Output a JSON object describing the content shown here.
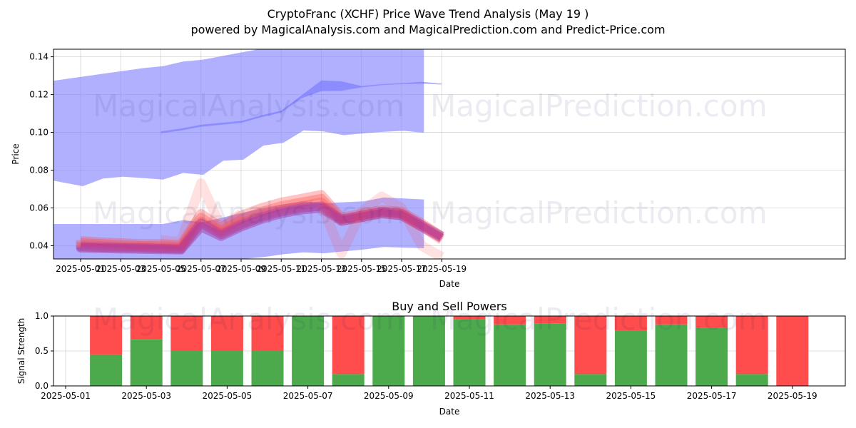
{
  "title": "CryptoFranc (XCHF) Price Wave Trend Analysis (May 19 )",
  "subtitle": "powered by MagicalAnalysis.com and MagicalPrediction.com and Predict-Price.com",
  "watermarks": [
    "MagicalAnalysis.com",
    "MagicalPrediction.com"
  ],
  "colors": {
    "band": "#8080ff",
    "band_dark": "#7070ff",
    "wave": "#ff4444",
    "wave_purple": "#aa3399",
    "buy": "#4caa4c",
    "sell": "#ff4c4c"
  },
  "chart_data": [
    {
      "type": "area",
      "title": "",
      "xlabel": "Date",
      "ylabel": "Price",
      "x_ticks": [
        "2025-05-01",
        "2025-05-03",
        "2025-05-05",
        "2025-05-07",
        "2025-05-09",
        "2025-05-11",
        "2025-05-13",
        "2025-05-15",
        "2025-05-17",
        "2025-05-19"
      ],
      "y_ticks": [
        0.04,
        0.06,
        0.08,
        0.1,
        0.12,
        0.14
      ],
      "xlim": [
        "2025-04-30",
        "2025-05-19"
      ],
      "ylim": [
        0.033,
        0.144
      ],
      "grid": true,
      "series": [
        {
          "dates": [
            "2025-04-30",
            "2025-05-01",
            "2025-05-02",
            "2025-05-03",
            "2025-05-04",
            "2025-05-05",
            "2025-05-06",
            "2025-05-07",
            "2025-05-08",
            "2025-05-09",
            "2025-05-10",
            "2025-05-11",
            "2025-05-12",
            "2025-05-13",
            "2025-05-14",
            "2025-05-15",
            "2025-05-16",
            "2025-05-17",
            "2025-05-18",
            "2025-05-19"
          ],
          "upper": [
            0.1265,
            0.128,
            0.1295,
            0.131,
            0.1325,
            0.134,
            0.135,
            0.1375,
            0.1385,
            0.1405,
            0.1425,
            0.1445,
            0.1465,
            0.148,
            0.149,
            0.149,
            0.149,
            0.149,
            0.149,
            0.149
          ],
          "lower": [
            0.0755,
            0.0735,
            0.0715,
            0.0755,
            0.0765,
            0.0758,
            0.075,
            0.0785,
            0.0775,
            0.085,
            0.0855,
            0.093,
            0.0945,
            0.101,
            0.1005,
            0.0985,
            0.0995,
            0.1003,
            0.1008,
            0.0998
          ]
        },
        {
          "dates": [
            "2025-04-30",
            "2025-05-01",
            "2025-05-02",
            "2025-05-03",
            "2025-05-04",
            "2025-05-05",
            "2025-05-06",
            "2025-05-07",
            "2025-05-08",
            "2025-05-09",
            "2025-05-10",
            "2025-05-11",
            "2025-05-12",
            "2025-05-13",
            "2025-05-14",
            "2025-05-15",
            "2025-05-16",
            "2025-05-17",
            "2025-05-18",
            "2025-05-19"
          ],
          "upper": [
            0.0515,
            0.0515,
            0.0515,
            0.0515,
            0.0515,
            0.0515,
            0.0515,
            0.0535,
            0.0525,
            0.055,
            0.0575,
            0.06,
            0.062,
            0.0635,
            0.0625,
            0.063,
            0.0635,
            0.0655,
            0.065,
            0.0645
          ],
          "lower": [
            0.031,
            0.031,
            0.031,
            0.031,
            0.031,
            0.031,
            0.031,
            0.031,
            0.031,
            0.031,
            0.033,
            0.034,
            0.0355,
            0.0365,
            0.036,
            0.037,
            0.038,
            0.0393,
            0.039,
            0.0387
          ]
        },
        {
          "dates": [
            "2025-05-05",
            "2025-05-06",
            "2025-05-07",
            "2025-05-08",
            "2025-05-09",
            "2025-05-10",
            "2025-05-11",
            "2025-05-12",
            "2025-05-13",
            "2025-05-14",
            "2025-05-15",
            "2025-05-16",
            "2025-05-17",
            "2025-05-18",
            "2025-05-19"
          ],
          "upper": [
            0.1005,
            0.102,
            0.104,
            0.105,
            0.106,
            0.109,
            0.1115,
            0.1195,
            0.1275,
            0.127,
            0.1245,
            0.1255,
            0.126,
            0.1268,
            0.1258
          ],
          "lower": [
            0.0995,
            0.101,
            0.103,
            0.104,
            0.105,
            0.108,
            0.1105,
            0.118,
            0.1218,
            0.122,
            0.1238,
            0.125,
            0.1255,
            0.1258,
            0.1253
          ]
        }
      ],
      "wave_lines": [
        {
          "dates": [
            "2025-04-30",
            "2025-05-01",
            "2025-05-02",
            "2025-05-03",
            "2025-05-04",
            "2025-05-05",
            "2025-05-06",
            "2025-05-07",
            "2025-05-08",
            "2025-05-09",
            "2025-05-10",
            "2025-05-11",
            "2025-05-12",
            "2025-05-13",
            "2025-05-14",
            "2025-05-15",
            "2025-05-16",
            "2025-05-17",
            "2025-05-18",
            "2025-05-19"
          ],
          "values": [
            0.043,
            0.0425,
            0.042,
            0.0415,
            0.041,
            0.041,
            0.0405,
            0.057,
            0.05,
            0.056,
            0.06,
            0.063,
            0.065,
            0.067,
            0.055,
            0.057,
            0.059,
            0.058,
            0.052,
            0.045
          ]
        },
        {
          "dates": [
            "2025-04-30",
            "2025-05-01",
            "2025-05-02",
            "2025-05-03",
            "2025-05-04",
            "2025-05-05",
            "2025-05-06",
            "2025-05-07",
            "2025-05-08",
            "2025-05-09",
            "2025-05-10",
            "2025-05-11",
            "2025-05-12",
            "2025-05-13",
            "2025-05-14",
            "2025-05-15",
            "2025-05-16",
            "2025-05-17",
            "2025-05-18",
            "2025-05-19"
          ],
          "values": [
            0.042,
            0.0415,
            0.041,
            0.0405,
            0.04,
            0.04,
            0.0395,
            0.055,
            0.048,
            0.054,
            0.058,
            0.061,
            0.063,
            0.065,
            0.054,
            0.056,
            0.058,
            0.057,
            0.051,
            0.044
          ]
        },
        {
          "dates": [
            "2025-04-30",
            "2025-05-01",
            "2025-05-02",
            "2025-05-03",
            "2025-05-04",
            "2025-05-05",
            "2025-05-06",
            "2025-05-07",
            "2025-05-08",
            "2025-05-09",
            "2025-05-10",
            "2025-05-11",
            "2025-05-12",
            "2025-05-13",
            "2025-05-14",
            "2025-05-15",
            "2025-05-16",
            "2025-05-17",
            "2025-05-18",
            "2025-05-19"
          ],
          "values": [
            0.041,
            0.0405,
            0.04,
            0.0395,
            0.0395,
            0.039,
            0.039,
            0.053,
            0.047,
            0.052,
            0.056,
            0.059,
            0.061,
            0.063,
            0.053,
            0.055,
            0.057,
            0.056,
            0.05,
            0.043
          ]
        },
        {
          "dates": [
            "2025-04-30",
            "2025-05-01",
            "2025-05-02",
            "2025-05-03",
            "2025-05-04",
            "2025-05-05",
            "2025-05-06",
            "2025-05-07",
            "2025-05-08",
            "2025-05-09",
            "2025-05-10",
            "2025-05-11",
            "2025-05-12",
            "2025-05-13",
            "2025-05-14",
            "2025-05-15",
            "2025-05-16",
            "2025-05-17",
            "2025-05-18",
            "2025-05-19"
          ],
          "values": [
            0.04,
            0.0395,
            0.0392,
            0.039,
            0.0388,
            0.0385,
            0.0383,
            0.052,
            0.046,
            0.051,
            0.055,
            0.058,
            0.06,
            0.061,
            0.054,
            0.056,
            0.058,
            0.057,
            0.051,
            0.045
          ]
        },
        {
          "dates": [
            "2025-04-30",
            "2025-05-01",
            "2025-05-02",
            "2025-05-03",
            "2025-05-04",
            "2025-05-05",
            "2025-05-06",
            "2025-05-07",
            "2025-05-08",
            "2025-05-09",
            "2025-05-10",
            "2025-05-11",
            "2025-05-12",
            "2025-05-13",
            "2025-05-14",
            "2025-05-15",
            "2025-05-16",
            "2025-05-17",
            "2025-05-18",
            "2025-05-19"
          ],
          "values": [
            0.039,
            0.0388,
            0.0386,
            0.0384,
            0.0382,
            0.038,
            0.0378,
            0.05,
            0.045,
            0.05,
            0.054,
            0.057,
            0.059,
            0.06,
            0.053,
            0.055,
            0.057,
            0.056,
            0.05,
            0.044
          ]
        },
        {
          "dates": [
            "2025-05-05",
            "2025-05-06",
            "2025-05-07",
            "2025-05-08",
            "2025-05-09"
          ],
          "values": [
            0.043,
            0.042,
            0.073,
            0.05,
            0.057
          ]
        },
        {
          "dates": [
            "2025-05-13",
            "2025-05-14",
            "2025-05-15",
            "2025-05-16",
            "2025-05-17",
            "2025-05-18",
            "2025-05-19"
          ],
          "values": [
            0.062,
            0.036,
            0.058,
            0.066,
            0.06,
            0.04,
            0.034
          ]
        }
      ]
    },
    {
      "type": "bar",
      "title": "Buy and Sell Powers",
      "xlabel": "Date",
      "ylabel": "Signal Strength",
      "x_ticks": [
        "2025-05-01",
        "2025-05-03",
        "2025-05-05",
        "2025-05-07",
        "2025-05-09",
        "2025-05-11",
        "2025-05-13",
        "2025-05-15",
        "2025-05-17",
        "2025-05-19"
      ],
      "y_ticks": [
        "0.0",
        "0.5",
        "1.0"
      ],
      "ylim": [
        0,
        1
      ],
      "categories": [
        "2025-05-02",
        "2025-05-03",
        "2025-05-04",
        "2025-05-05",
        "2025-05-06",
        "2025-05-07",
        "2025-05-08",
        "2025-05-09",
        "2025-05-10",
        "2025-05-11",
        "2025-05-12",
        "2025-05-13",
        "2025-05-14",
        "2025-05-15",
        "2025-05-16",
        "2025-05-17",
        "2025-05-18",
        "2025-05-19"
      ],
      "series": [
        {
          "name": "Buy",
          "values": [
            0.45,
            0.67,
            0.5,
            0.5,
            0.5,
            1.0,
            0.17,
            1.0,
            1.0,
            0.95,
            0.88,
            0.89,
            0.17,
            0.79,
            0.88,
            0.83,
            0.17,
            0.0
          ]
        },
        {
          "name": "Sell",
          "values": [
            0.55,
            0.33,
            0.5,
            0.5,
            0.5,
            0.0,
            0.83,
            0.0,
            0.0,
            0.05,
            0.12,
            0.11,
            0.83,
            0.21,
            0.12,
            0.17,
            0.83,
            1.0
          ]
        }
      ]
    }
  ]
}
